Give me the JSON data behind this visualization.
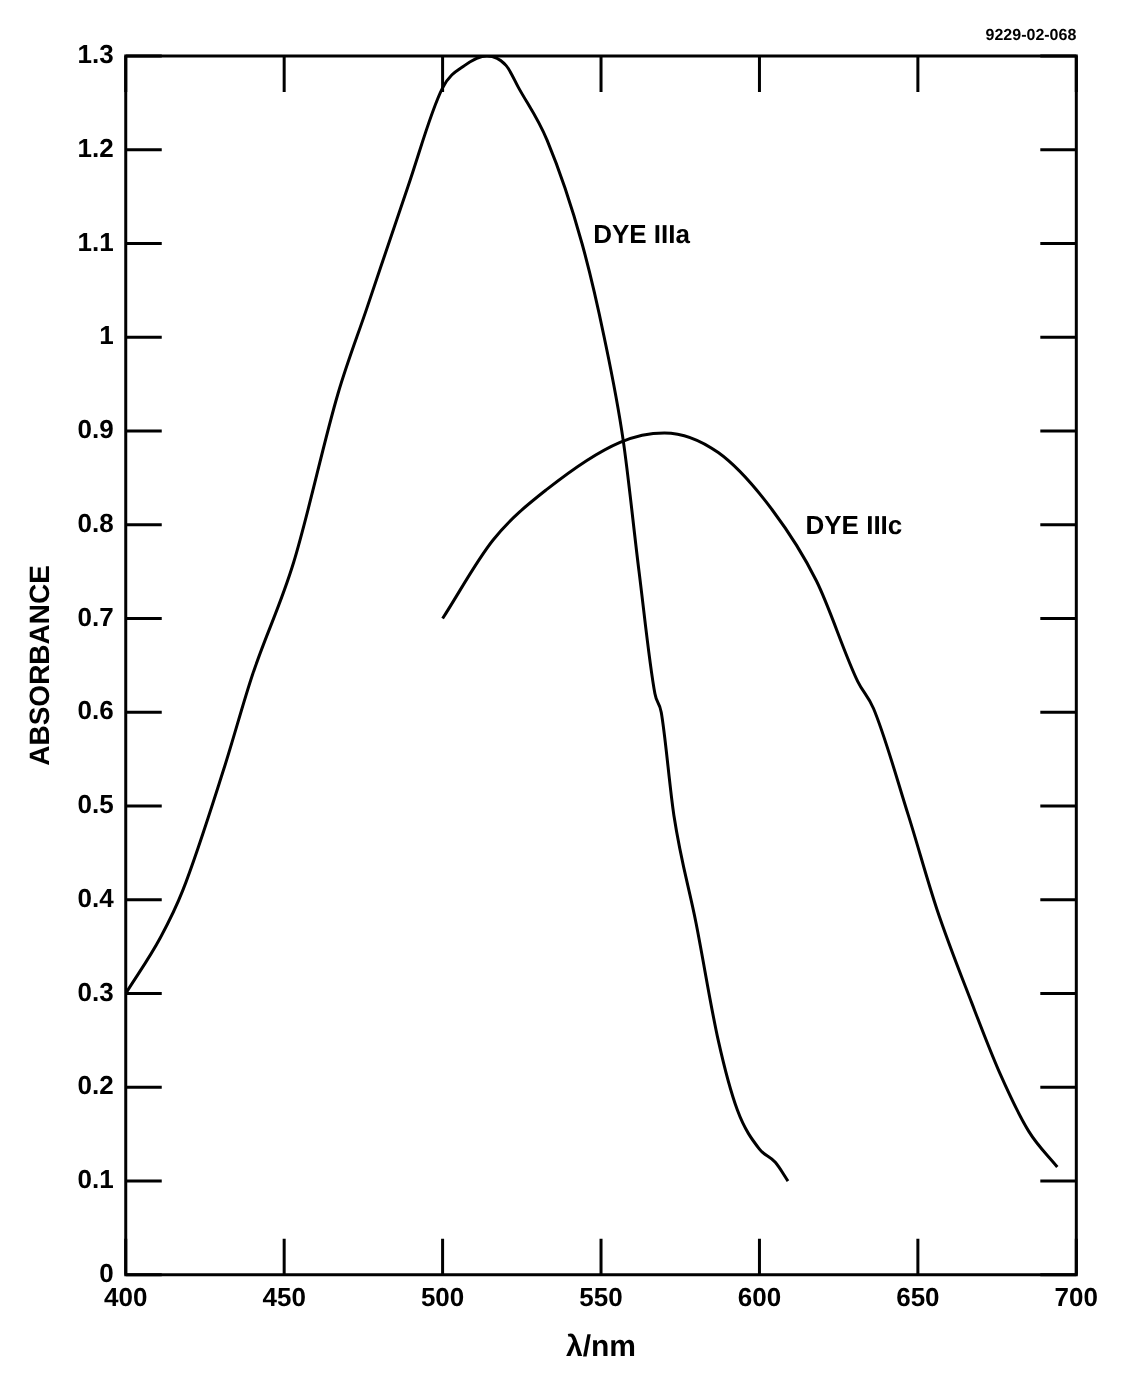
{
  "chart_data": {
    "type": "line",
    "xlabel": "λ/nm",
    "ylabel": "ABSORBANCE",
    "xlim": [
      400,
      700
    ],
    "xticks": [
      400,
      450,
      500,
      550,
      600,
      650,
      700
    ],
    "ylim": [
      0,
      1.3
    ],
    "yticks": [
      0,
      0.1,
      0.2,
      0.3,
      0.4,
      0.5,
      0.6,
      0.7,
      0.8,
      0.9,
      1.0,
      1.1,
      1.2,
      1.3
    ],
    "grid": false,
    "legend": false,
    "marker": "none",
    "line_style": "solid",
    "series": [
      {
        "color": "#000000",
        "x": [
          400,
          411,
          418,
          431,
          440,
          453,
          467,
          476,
          489,
          500,
          507,
          514,
          520,
          524,
          533,
          544,
          551,
          557,
          562,
          567,
          569,
          573,
          580,
          587,
          593,
          600,
          605,
          609
        ],
        "values": [
          0.3,
          0.36,
          0.41,
          0.54,
          0.64,
          0.76,
          0.94,
          1.03,
          1.16,
          1.266,
          1.29,
          1.3,
          1.29,
          1.266,
          1.21,
          1.1,
          1.0,
          0.89,
          0.75,
          0.62,
          0.6,
          0.49,
          0.375,
          0.25,
          0.176,
          0.134,
          0.12,
          0.1
        ]
      },
      {
        "color": "#000000",
        "x": [
          500,
          516,
          533,
          556,
          570,
          587,
          604,
          618,
          631,
          636,
          647,
          656,
          667,
          676,
          685,
          694
        ],
        "values": [
          0.7,
          0.784,
          0.838,
          0.888,
          0.898,
          0.877,
          0.816,
          0.74,
          0.633,
          0.604,
          0.49,
          0.39,
          0.29,
          0.214,
          0.153,
          0.115
        ]
      }
    ],
    "annotations": [
      {
        "text": "DYE IIIa",
        "x": 545,
        "y": 1.09
      },
      {
        "text": "DYE IIIc",
        "x": 612,
        "y": 0.78
      },
      "9229-02-068"
    ]
  }
}
